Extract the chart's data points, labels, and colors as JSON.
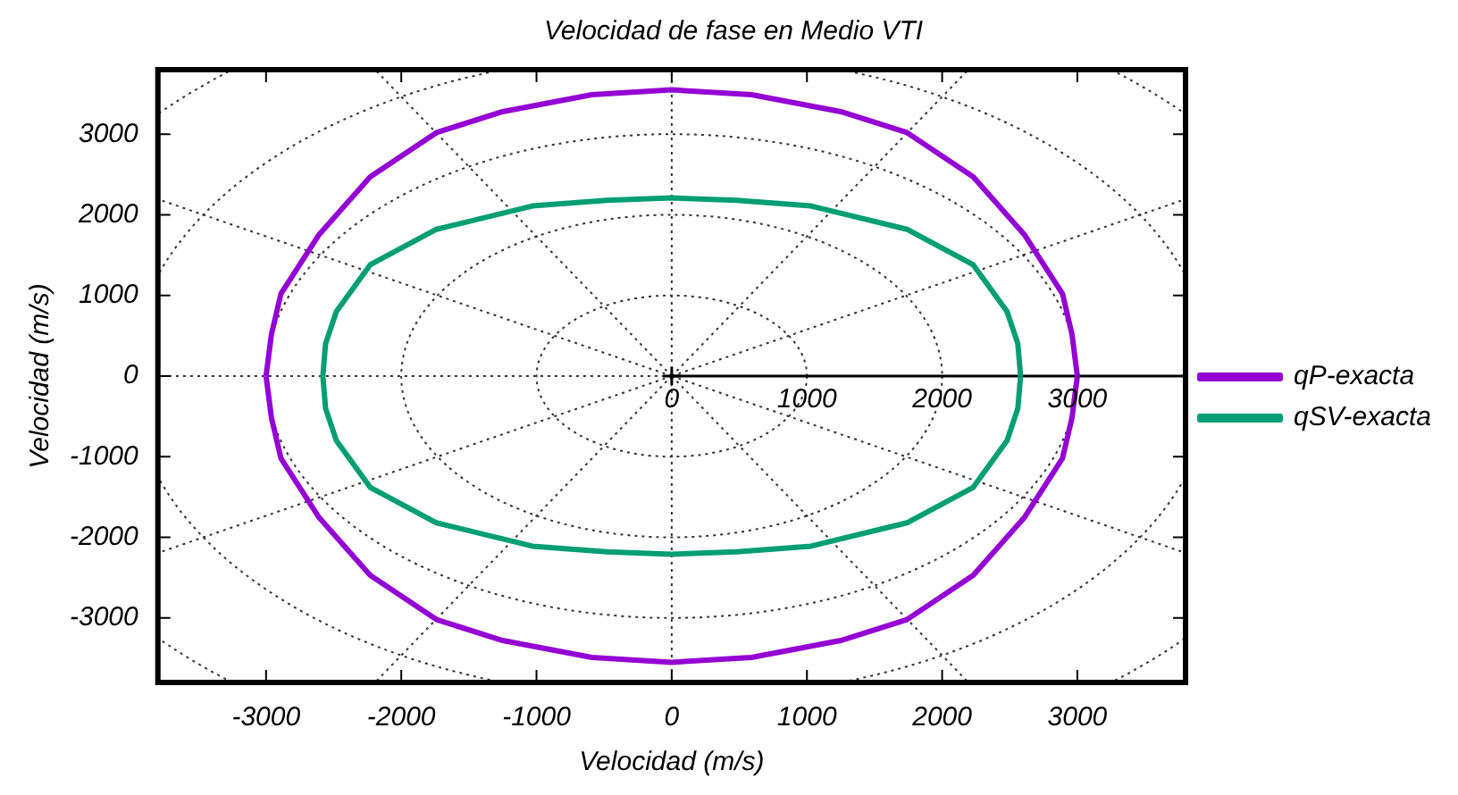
{
  "chart_data": {
    "type": "line",
    "title": "Velocidad de fase en Medio VTI",
    "xlabel": "Velocidad (m/s)",
    "ylabel": "Velocidad (m/s)",
    "xlim": [
      -3800,
      3800
    ],
    "ylim": [
      -3800,
      3800
    ],
    "xticks": [
      -3000,
      -2000,
      -1000,
      0,
      1000,
      2000,
      3000
    ],
    "yticks": [
      -3000,
      -2000,
      -1000,
      0,
      1000,
      2000,
      3000
    ],
    "grid": true,
    "legend": "right",
    "marker": "none",
    "line_style": "solid",
    "annotations": [
      "0",
      "1000",
      "2000",
      "3000"
    ],
    "series": [
      {
        "name": "qP-exacta",
        "color": "#9400d3",
        "x": [
          -3000,
          -2960,
          -2890,
          -2610,
          -2230,
          -1740,
          -1250,
          -590,
          0,
          590,
          1250,
          1740,
          2230,
          2610,
          2890,
          2960,
          3000,
          null,
          -3000,
          -2960,
          -2890,
          -2610,
          -2230,
          -1740,
          -1250,
          -590,
          0,
          590,
          1250,
          1740,
          2230,
          2610,
          2890,
          2960,
          3000
        ],
        "values": [
          0,
          520,
          1020,
          1750,
          2470,
          3020,
          3280,
          3490,
          3550,
          3490,
          3280,
          3020,
          2470,
          1750,
          1020,
          520,
          0,
          null,
          0,
          -520,
          -1020,
          -1750,
          -2470,
          -3020,
          -3280,
          -3490,
          -3550,
          -3490,
          -3280,
          -3020,
          -2470,
          -1750,
          -1020,
          -520,
          0
        ]
      },
      {
        "name": "qSV-exacta",
        "color": "#009e73",
        "x": [
          -2580,
          -2560,
          -2480,
          -2230,
          -1740,
          -1030,
          -480,
          0,
          480,
          1030,
          1740,
          2230,
          2480,
          2560,
          2580,
          null,
          -2580,
          -2560,
          -2480,
          -2230,
          -1740,
          -1030,
          -480,
          0,
          480,
          1030,
          1740,
          2230,
          2480,
          2560,
          2580
        ],
        "values": [
          0,
          400,
          800,
          1380,
          1820,
          2110,
          2180,
          2210,
          2180,
          2110,
          1820,
          1380,
          800,
          400,
          0,
          null,
          0,
          -400,
          -800,
          -1380,
          -1820,
          -2110,
          -2180,
          -2210,
          -2180,
          -2110,
          -1820,
          -1380,
          -800,
          -400,
          0
        ]
      }
    ]
  }
}
